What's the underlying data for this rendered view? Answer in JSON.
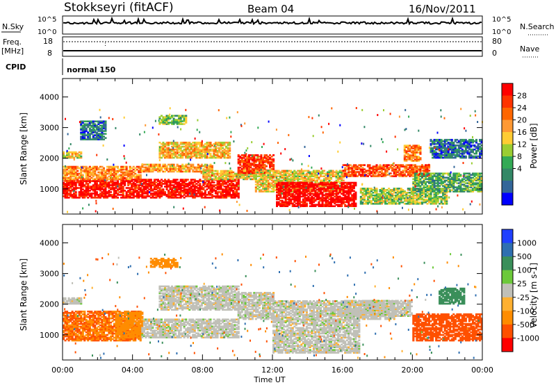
{
  "header": {
    "station": "Stokkseyri (fitACF)",
    "beam": "Beam 04",
    "date": "16/Nov/2011"
  },
  "panels": {
    "nsky": {
      "left_label": "N.Sky",
      "right_label": "N.Search",
      "left_ticks": [
        "10^5",
        "10^0"
      ],
      "right_ticks": [
        "10^5",
        "10^0"
      ]
    },
    "freq": {
      "left_label_1": "Freq.",
      "left_label_2": "[MHz]",
      "right_label": "Nave",
      "left_ticks": [
        "18",
        "8"
      ],
      "right_ticks": [
        "80",
        "0"
      ]
    },
    "cpid": {
      "label": "CPID",
      "mode": "normal 150"
    }
  },
  "colorbars": {
    "power": {
      "title": "Power [dB]",
      "ticks": [
        "28",
        "24",
        "20",
        "16",
        "12",
        "8",
        "4"
      ],
      "colors": [
        "#ff0000",
        "#ff3300",
        "#ff6600",
        "#ff9933",
        "#ffcc33",
        "#9acd32",
        "#33aa55",
        "#338866",
        "#336699",
        "#0000ff"
      ]
    },
    "velocity": {
      "title": "Velocity [m s-1]",
      "ticks": [
        "1000",
        "500",
        "100",
        "25",
        "-25",
        "-100",
        "-500",
        "-1000"
      ],
      "colors": [
        "#2040ff",
        "#2f6fb0",
        "#3a8f5a",
        "#6cc93a",
        "#c0c0b8",
        "#ffb030",
        "#ff8c00",
        "#ff5000",
        "#ff0000"
      ]
    }
  },
  "chart_data": [
    {
      "type": "heatmap",
      "title": "",
      "quantity": "Power",
      "units": "dB",
      "xlabel": "",
      "ylabel": "Slant Range [km]",
      "x_ticks": [
        "00:00",
        "04:00",
        "08:00",
        "12:00",
        "16:00",
        "20:00",
        "00:00"
      ],
      "y_ticks": [
        "1000",
        "2000",
        "3000",
        "4000"
      ],
      "x_range_hours": [
        0,
        24
      ],
      "y_range_km": [
        180,
        4600
      ],
      "bands": [
        {
          "t": [
            0,
            10
          ],
          "r": [
            700,
            1300
          ],
          "level": 0.95
        },
        {
          "t": [
            0,
            4.5
          ],
          "r": [
            1300,
            1750
          ],
          "level": 0.7
        },
        {
          "t": [
            0,
            1
          ],
          "r": [
            2000,
            2200
          ],
          "level": 0.55
        },
        {
          "t": [
            4.5,
            8.5
          ],
          "r": [
            1550,
            1800
          ],
          "level": 0.65
        },
        {
          "t": [
            5.5,
            9.5
          ],
          "r": [
            2000,
            2500
          ],
          "level": 0.6
        },
        {
          "t": [
            8,
            11
          ],
          "r": [
            1300,
            1600
          ],
          "level": 0.55
        },
        {
          "t": [
            10,
            12
          ],
          "r": [
            1500,
            2100
          ],
          "level": 0.85
        },
        {
          "t": [
            11,
            16
          ],
          "r": [
            900,
            1600
          ],
          "level": 0.55
        },
        {
          "t": [
            12.2,
            16.7
          ],
          "r": [
            420,
            1200
          ],
          "level": 1.0
        },
        {
          "t": [
            16,
            21
          ],
          "r": [
            1400,
            1800
          ],
          "level": 0.8
        },
        {
          "t": [
            19.5,
            20.5
          ],
          "r": [
            1900,
            2400
          ],
          "level": 0.7
        },
        {
          "t": [
            17,
            22
          ],
          "r": [
            500,
            1000
          ],
          "level": 0.45
        },
        {
          "t": [
            20,
            24
          ],
          "r": [
            900,
            1500
          ],
          "level": 0.35
        },
        {
          "t": [
            21,
            24
          ],
          "r": [
            2000,
            2600
          ],
          "level": 0.2
        },
        {
          "t": [
            5.5,
            7
          ],
          "r": [
            3100,
            3400
          ],
          "level": 0.4
        },
        {
          "t": [
            1,
            2.5
          ],
          "r": [
            2600,
            3200
          ],
          "level": 0.2
        }
      ]
    },
    {
      "type": "heatmap",
      "title": "",
      "quantity": "Velocity",
      "units": "m s-1",
      "xlabel": "Time UT",
      "ylabel": "Slant Range [km]",
      "x_ticks": [
        "00:00",
        "04:00",
        "08:00",
        "12:00",
        "16:00",
        "20:00",
        "00:00"
      ],
      "y_ticks": [
        "1000",
        "2000",
        "3000",
        "4000"
      ],
      "x_range_hours": [
        0,
        24
      ],
      "y_range_km": [
        180,
        4600
      ],
      "bands": [
        {
          "t": [
            0,
            4.5
          ],
          "r": [
            800,
            1750
          ],
          "velocity": -300
        },
        {
          "t": [
            3,
            4.5
          ],
          "r": [
            900,
            1750
          ],
          "velocity": -150
        },
        {
          "t": [
            4.5,
            10
          ],
          "r": [
            900,
            1500
          ],
          "velocity": 0
        },
        {
          "t": [
            5.5,
            10
          ],
          "r": [
            1800,
            2600
          ],
          "velocity": 0
        },
        {
          "t": [
            10,
            12
          ],
          "r": [
            1500,
            2400
          ],
          "velocity": 0
        },
        {
          "t": [
            12,
            17
          ],
          "r": [
            400,
            1500
          ],
          "velocity": 0
        },
        {
          "t": [
            12,
            19
          ],
          "r": [
            1500,
            2100
          ],
          "velocity": 0
        },
        {
          "t": [
            16,
            20
          ],
          "r": [
            1600,
            2100
          ],
          "velocity": 0
        },
        {
          "t": [
            20,
            24
          ],
          "r": [
            800,
            1700
          ],
          "velocity": -700
        },
        {
          "t": [
            21.5,
            23
          ],
          "r": [
            2000,
            2500
          ],
          "velocity": 200
        },
        {
          "t": [
            5,
            6.5
          ],
          "r": [
            3200,
            3500
          ],
          "velocity": -150
        },
        {
          "t": [
            0,
            1
          ],
          "r": [
            2000,
            2200
          ],
          "velocity": 0
        }
      ]
    }
  ]
}
